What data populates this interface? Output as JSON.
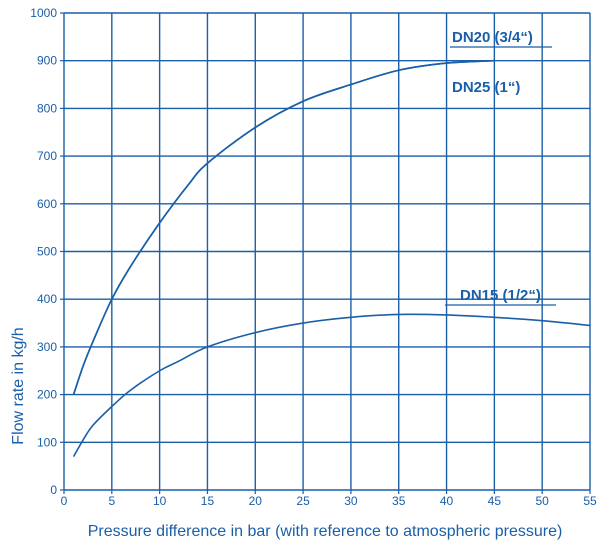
{
  "chart_data": {
    "type": "line",
    "title": "",
    "xlabel": "Pressure difference in bar (with reference to atmospheric pressure)",
    "ylabel": "Flow rate in kg/h",
    "xlim": [
      0,
      55
    ],
    "ylim": [
      0,
      1000
    ],
    "x_ticks": [
      "0",
      "5",
      "10",
      "15",
      "20",
      "25",
      "30",
      "35",
      "40",
      "45",
      "50",
      "55"
    ],
    "y_ticks": [
      "0",
      "100",
      "200",
      "300",
      "400",
      "500",
      "600",
      "700",
      "800",
      "900",
      "1000"
    ],
    "grid": true,
    "colors": {
      "line": "#1a5fa8",
      "grid": "#1a5fa8",
      "text": "#1a5fa8"
    },
    "series": [
      {
        "name": "DN20 (3/4“)",
        "x": [
          1,
          2,
          3,
          5,
          7,
          10,
          13,
          15,
          20,
          25,
          30,
          35,
          40,
          45
        ],
        "y": [
          200,
          260,
          310,
          400,
          470,
          560,
          640,
          685,
          760,
          815,
          850,
          880,
          895,
          900
        ]
      },
      {
        "name": "DN25 (1“)",
        "x": [
          1,
          2,
          3,
          5,
          7,
          10,
          13,
          15,
          20,
          25,
          30,
          35,
          40,
          45
        ],
        "y": [
          200,
          260,
          310,
          400,
          470,
          560,
          640,
          685,
          760,
          815,
          850,
          880,
          895,
          900
        ]
      },
      {
        "name": "DN15 (1/2“)",
        "x": [
          1,
          2,
          3,
          5,
          7,
          10,
          12,
          15,
          20,
          25,
          30,
          35,
          40,
          45,
          50,
          55
        ],
        "y": [
          70,
          105,
          135,
          175,
          210,
          250,
          270,
          300,
          330,
          350,
          362,
          368,
          367,
          362,
          355,
          345
        ]
      }
    ],
    "annotations": [
      "DN20 (3/4“)",
      "DN25 (1“)",
      "DN15 (1/2“)"
    ]
  }
}
